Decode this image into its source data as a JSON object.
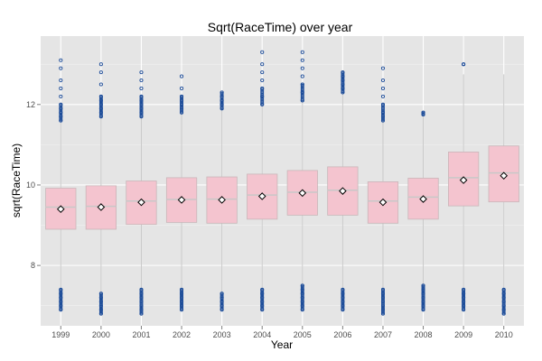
{
  "chart_data": {
    "type": "boxplot",
    "title": "Sqrt(RaceTime) over year",
    "xlabel": "Year",
    "ylabel": "sqrt(RaceTime)",
    "ylim": [
      6.5,
      13.7
    ],
    "yticks": [
      8,
      10,
      12
    ],
    "grid": true,
    "categories": [
      "1999",
      "2000",
      "2001",
      "2002",
      "2003",
      "2004",
      "2005",
      "2006",
      "2007",
      "2008",
      "2009",
      "2010"
    ],
    "boxes": [
      {
        "year": "1999",
        "q1": 8.9,
        "median": 9.45,
        "q3": 9.92,
        "mean": 9.4,
        "whisker_low": 7.1,
        "whisker_high": 11.6,
        "outliers_low": [
          6.9,
          7.0,
          7.1,
          7.2,
          7.3,
          7.4
        ],
        "outliers_high": [
          11.6,
          11.7,
          11.8,
          11.9,
          12.0,
          12.2,
          12.4,
          12.6,
          12.9,
          13.1
        ]
      },
      {
        "year": "2000",
        "q1": 8.9,
        "median": 9.47,
        "q3": 9.98,
        "mean": 9.45,
        "whisker_low": 7.1,
        "whisker_high": 11.7,
        "outliers_low": [
          6.8,
          6.9,
          7.0,
          7.1,
          7.2,
          7.3
        ],
        "outliers_high": [
          11.7,
          11.8,
          11.9,
          12.0,
          12.1,
          12.2,
          12.5,
          12.8,
          13.0
        ]
      },
      {
        "year": "2001",
        "q1": 9.02,
        "median": 9.6,
        "q3": 10.1,
        "mean": 9.57,
        "whisker_low": 7.1,
        "whisker_high": 11.7,
        "outliers_low": [
          6.8,
          6.9,
          7.0,
          7.1,
          7.2,
          7.3,
          7.4
        ],
        "outliers_high": [
          11.7,
          11.8,
          11.9,
          12.0,
          12.1,
          12.2,
          12.4,
          12.6,
          12.8
        ]
      },
      {
        "year": "2002",
        "q1": 9.07,
        "median": 9.64,
        "q3": 10.18,
        "mean": 9.63,
        "whisker_low": 7.1,
        "whisker_high": 11.8,
        "outliers_low": [
          6.9,
          7.0,
          7.1,
          7.2,
          7.3,
          7.4
        ],
        "outliers_high": [
          11.8,
          11.9,
          12.0,
          12.1,
          12.2,
          12.4,
          12.7
        ]
      },
      {
        "year": "2003",
        "q1": 9.05,
        "median": 9.65,
        "q3": 10.2,
        "mean": 9.63,
        "whisker_low": 7.1,
        "whisker_high": 11.9,
        "outliers_low": [
          6.9,
          7.0,
          7.1,
          7.2,
          7.3
        ],
        "outliers_high": [
          11.9,
          12.0,
          12.1,
          12.2,
          12.3
        ]
      },
      {
        "year": "2004",
        "q1": 9.15,
        "median": 9.75,
        "q3": 10.27,
        "mean": 9.72,
        "whisker_low": 7.1,
        "whisker_high": 12.0,
        "outliers_low": [
          6.9,
          7.0,
          7.1,
          7.2,
          7.3,
          7.4
        ],
        "outliers_high": [
          12.0,
          12.2,
          12.4,
          12.6,
          12.8,
          13.0,
          13.3
        ]
      },
      {
        "year": "2005",
        "q1": 9.25,
        "median": 9.82,
        "q3": 10.36,
        "mean": 9.8,
        "whisker_low": 7.1,
        "whisker_high": 12.1,
        "outliers_low": [
          6.9,
          7.0,
          7.1,
          7.2,
          7.3,
          7.4,
          7.5
        ],
        "outliers_high": [
          12.1,
          12.3,
          12.5,
          12.7,
          12.9,
          13.1,
          13.3
        ]
      },
      {
        "year": "2006",
        "q1": 9.25,
        "median": 9.87,
        "q3": 10.45,
        "mean": 9.85,
        "whisker_low": 7.1,
        "whisker_high": 12.3,
        "outliers_low": [
          6.9,
          7.0,
          7.1,
          7.2,
          7.3,
          7.4
        ],
        "outliers_high": [
          12.3,
          12.4,
          12.5,
          12.6,
          12.7,
          12.8
        ]
      },
      {
        "year": "2007",
        "q1": 9.05,
        "median": 9.6,
        "q3": 10.08,
        "mean": 9.57,
        "whisker_low": 7.1,
        "whisker_high": 11.6,
        "outliers_low": [
          6.8,
          6.9,
          7.0,
          7.1,
          7.2,
          7.3,
          7.4
        ],
        "outliers_high": [
          11.6,
          11.7,
          11.8,
          12.0,
          12.2,
          12.4,
          12.6,
          12.9
        ]
      },
      {
        "year": "2008",
        "q1": 9.15,
        "median": 9.7,
        "q3": 10.17,
        "mean": 9.65,
        "whisker_low": 7.1,
        "whisker_high": 11.7,
        "outliers_low": [
          6.9,
          7.0,
          7.1,
          7.2,
          7.3,
          7.4,
          7.5
        ],
        "outliers_high": [
          11.75,
          11.8
        ]
      },
      {
        "year": "2009",
        "q1": 9.48,
        "median": 10.18,
        "q3": 10.82,
        "mean": 10.12,
        "whisker_low": 7.1,
        "whisker_high": 12.75,
        "outliers_low": [
          6.9,
          7.0,
          7.1,
          7.2,
          7.3,
          7.4
        ],
        "outliers_high": [
          13.0
        ]
      },
      {
        "year": "2010",
        "q1": 9.58,
        "median": 10.3,
        "q3": 10.97,
        "mean": 10.23,
        "whisker_low": 7.1,
        "whisker_high": 12.75,
        "outliers_low": [
          6.8,
          6.9,
          7.0,
          7.1,
          7.2,
          7.3,
          7.4
        ],
        "outliers_high": []
      }
    ],
    "colors": {
      "panel_bg": "#e5e5e5",
      "grid_major": "#ffffff",
      "grid_minor": "#f2f2f2",
      "box_fill": "#f4c4cf",
      "box_stroke": "#c9b6b9",
      "median": "#c8c8c8",
      "whisker": "#c8c8c8",
      "outlier": "#1f4e9a",
      "mean_marker": "#000000"
    }
  }
}
